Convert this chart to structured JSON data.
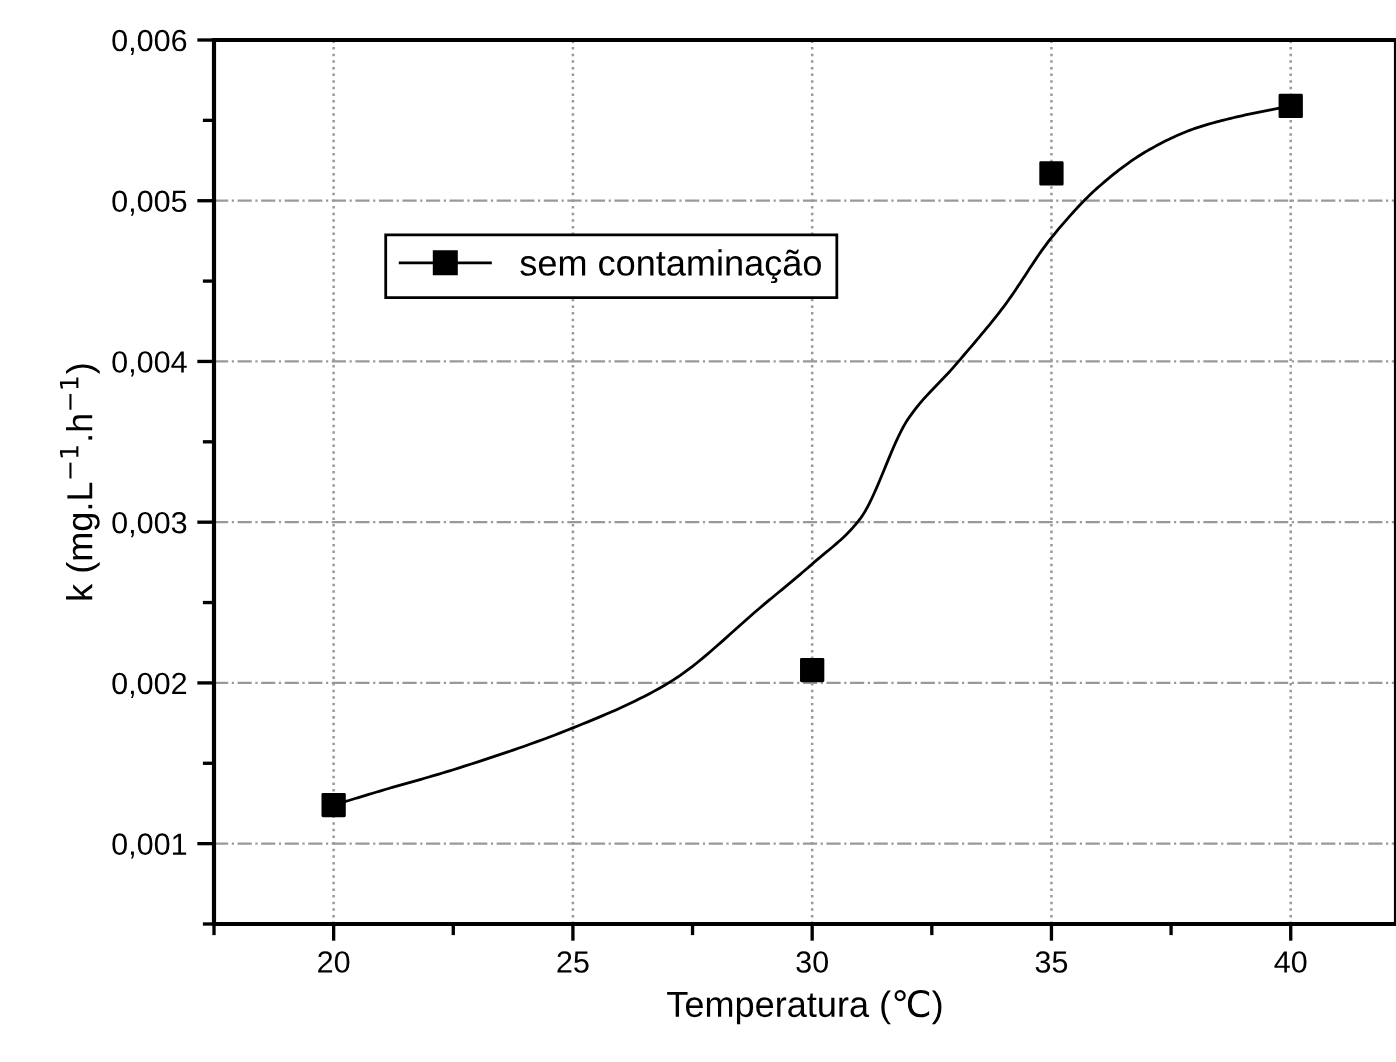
{
  "chart_data": {
    "type": "scatter",
    "xlabel": "Temperatura (℃)",
    "ylabel": "k (mg.L$^{−1}$.h$^{−1}$)",
    "xlim": [
      17.5,
      42.2
    ],
    "ylim": [
      0.0005,
      0.006
    ],
    "xticks": [
      20,
      25,
      30,
      35,
      40
    ],
    "yticks": [
      {
        "value": 0.001,
        "label": "0,001"
      },
      {
        "value": 0.002,
        "label": "0,002"
      },
      {
        "value": 0.003,
        "label": "0,003"
      },
      {
        "value": 0.004,
        "label": "0,004"
      },
      {
        "value": 0.005,
        "label": "0,005"
      },
      {
        "value": 0.006,
        "label": "0,006"
      }
    ],
    "grid": true,
    "legend": "top left",
    "series": [
      {
        "name": "sem contaminação",
        "marker": "square",
        "color": "#000000",
        "x": [
          20,
          30,
          35,
          40
        ],
        "values": [
          0.00124,
          0.00208,
          0.00517,
          0.00559
        ]
      },
      {
        "type": "line",
        "color": "#000000",
        "line_style": "solid",
        "x": [
          20,
          21,
          22.5,
          25,
          27,
          29,
          30,
          31,
          32,
          33,
          34,
          35,
          36,
          37,
          38,
          39,
          40
        ],
        "values": [
          0.00124,
          0.00133,
          0.00146,
          0.00172,
          0.002,
          0.00249,
          0.00274,
          0.00302,
          0.00364,
          0.00398,
          0.00434,
          0.00477,
          0.00509,
          0.00531,
          0.00545,
          0.00553,
          0.00559
        ]
      }
    ]
  }
}
